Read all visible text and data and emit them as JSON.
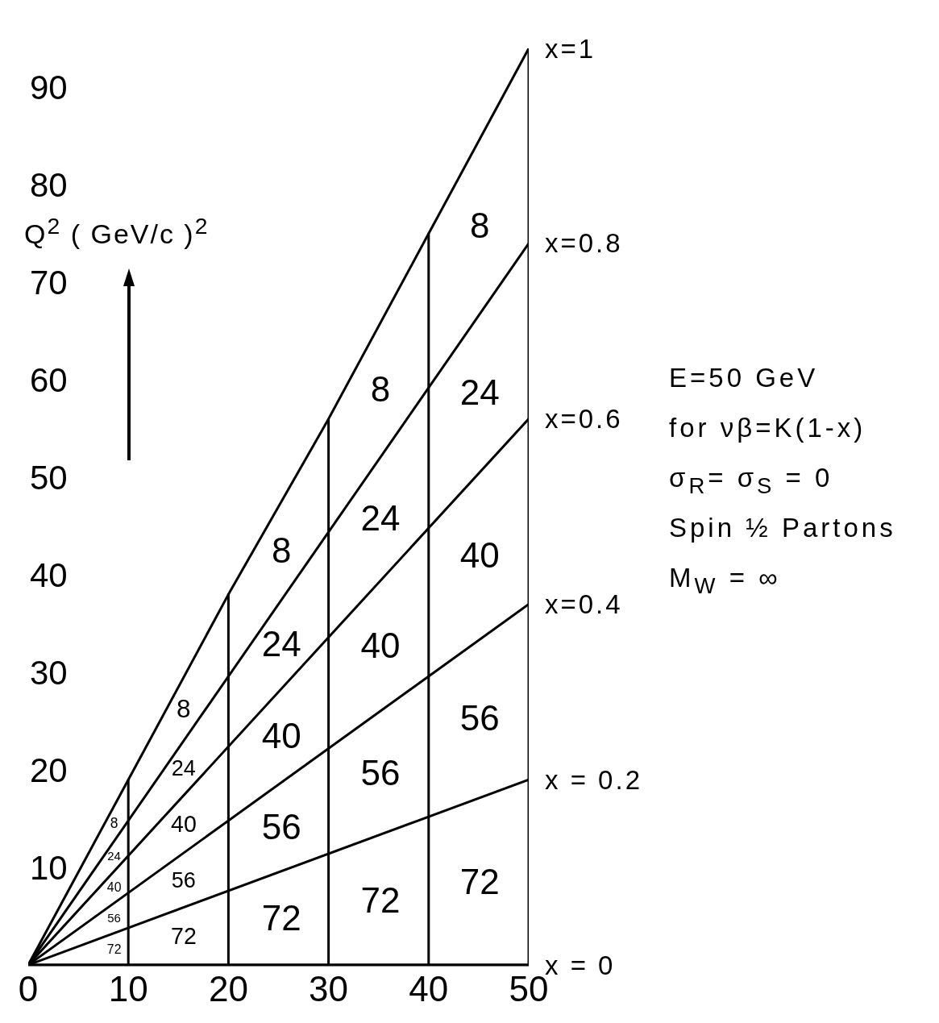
{
  "chart_data": {
    "type": "line",
    "ylabel": "Q$^{2}$ ( GeV/c )$^{2}$",
    "xlim": [
      0,
      50
    ],
    "xticks": [
      0,
      10,
      20,
      30,
      40,
      50
    ],
    "ylim": [
      0,
      94
    ],
    "yticks": [
      10,
      20,
      30,
      40,
      50,
      60,
      70,
      80,
      90
    ],
    "marker": "none",
    "series": [
      {
        "name": "x=1",
        "color": "#000000",
        "x": [
          0,
          10,
          20,
          30,
          40,
          50
        ],
        "values": [
          0,
          19,
          38,
          56,
          75,
          94
        ]
      },
      {
        "name": "x=0.8",
        "color": "#000000",
        "x": [
          0,
          50
        ],
        "values": [
          0,
          74
        ]
      },
      {
        "name": "x=0.6",
        "color": "#000000",
        "x": [
          0,
          50
        ],
        "values": [
          0,
          56
        ]
      },
      {
        "name": "x=0.4",
        "color": "#000000",
        "x": [
          0,
          50
        ],
        "values": [
          0,
          37
        ]
      },
      {
        "name": "x = 0.2",
        "color": "#000000",
        "x": [
          0,
          50
        ],
        "values": [
          0,
          19
        ]
      },
      {
        "name": "x = 0",
        "color": "#000000",
        "x": [
          0,
          50
        ],
        "values": [
          0,
          0
        ]
      },
      {
        "color": "#000000",
        "x": [
          10,
          10
        ],
        "values": [
          0,
          19
        ]
      },
      {
        "color": "#000000",
        "x": [
          20,
          20
        ],
        "values": [
          0,
          38
        ]
      },
      {
        "color": "#000000",
        "x": [
          30,
          30
        ],
        "values": [
          0,
          56
        ]
      },
      {
        "color": "#000000",
        "x": [
          40,
          40
        ],
        "values": [
          0,
          75
        ]
      },
      {
        "color": "#000000",
        "x": [
          50,
          50
        ],
        "values": [
          0,
          94
        ]
      }
    ],
    "annotations": [
      "8",
      "24",
      "40",
      "56",
      "72",
      "8",
      "24",
      "40",
      "56",
      "72",
      "8",
      "24",
      "40",
      "56",
      "72",
      "8",
      "24",
      "40",
      "56",
      "72",
      "8",
      "24",
      "40",
      "56",
      "72",
      "E=50 GeV",
      "for νβ=K(1-x)",
      "σ$_{R}$= σ$_{S}$ = 0",
      "Spin ½ Partons",
      "M$_{W}$ = ∞"
    ]
  }
}
